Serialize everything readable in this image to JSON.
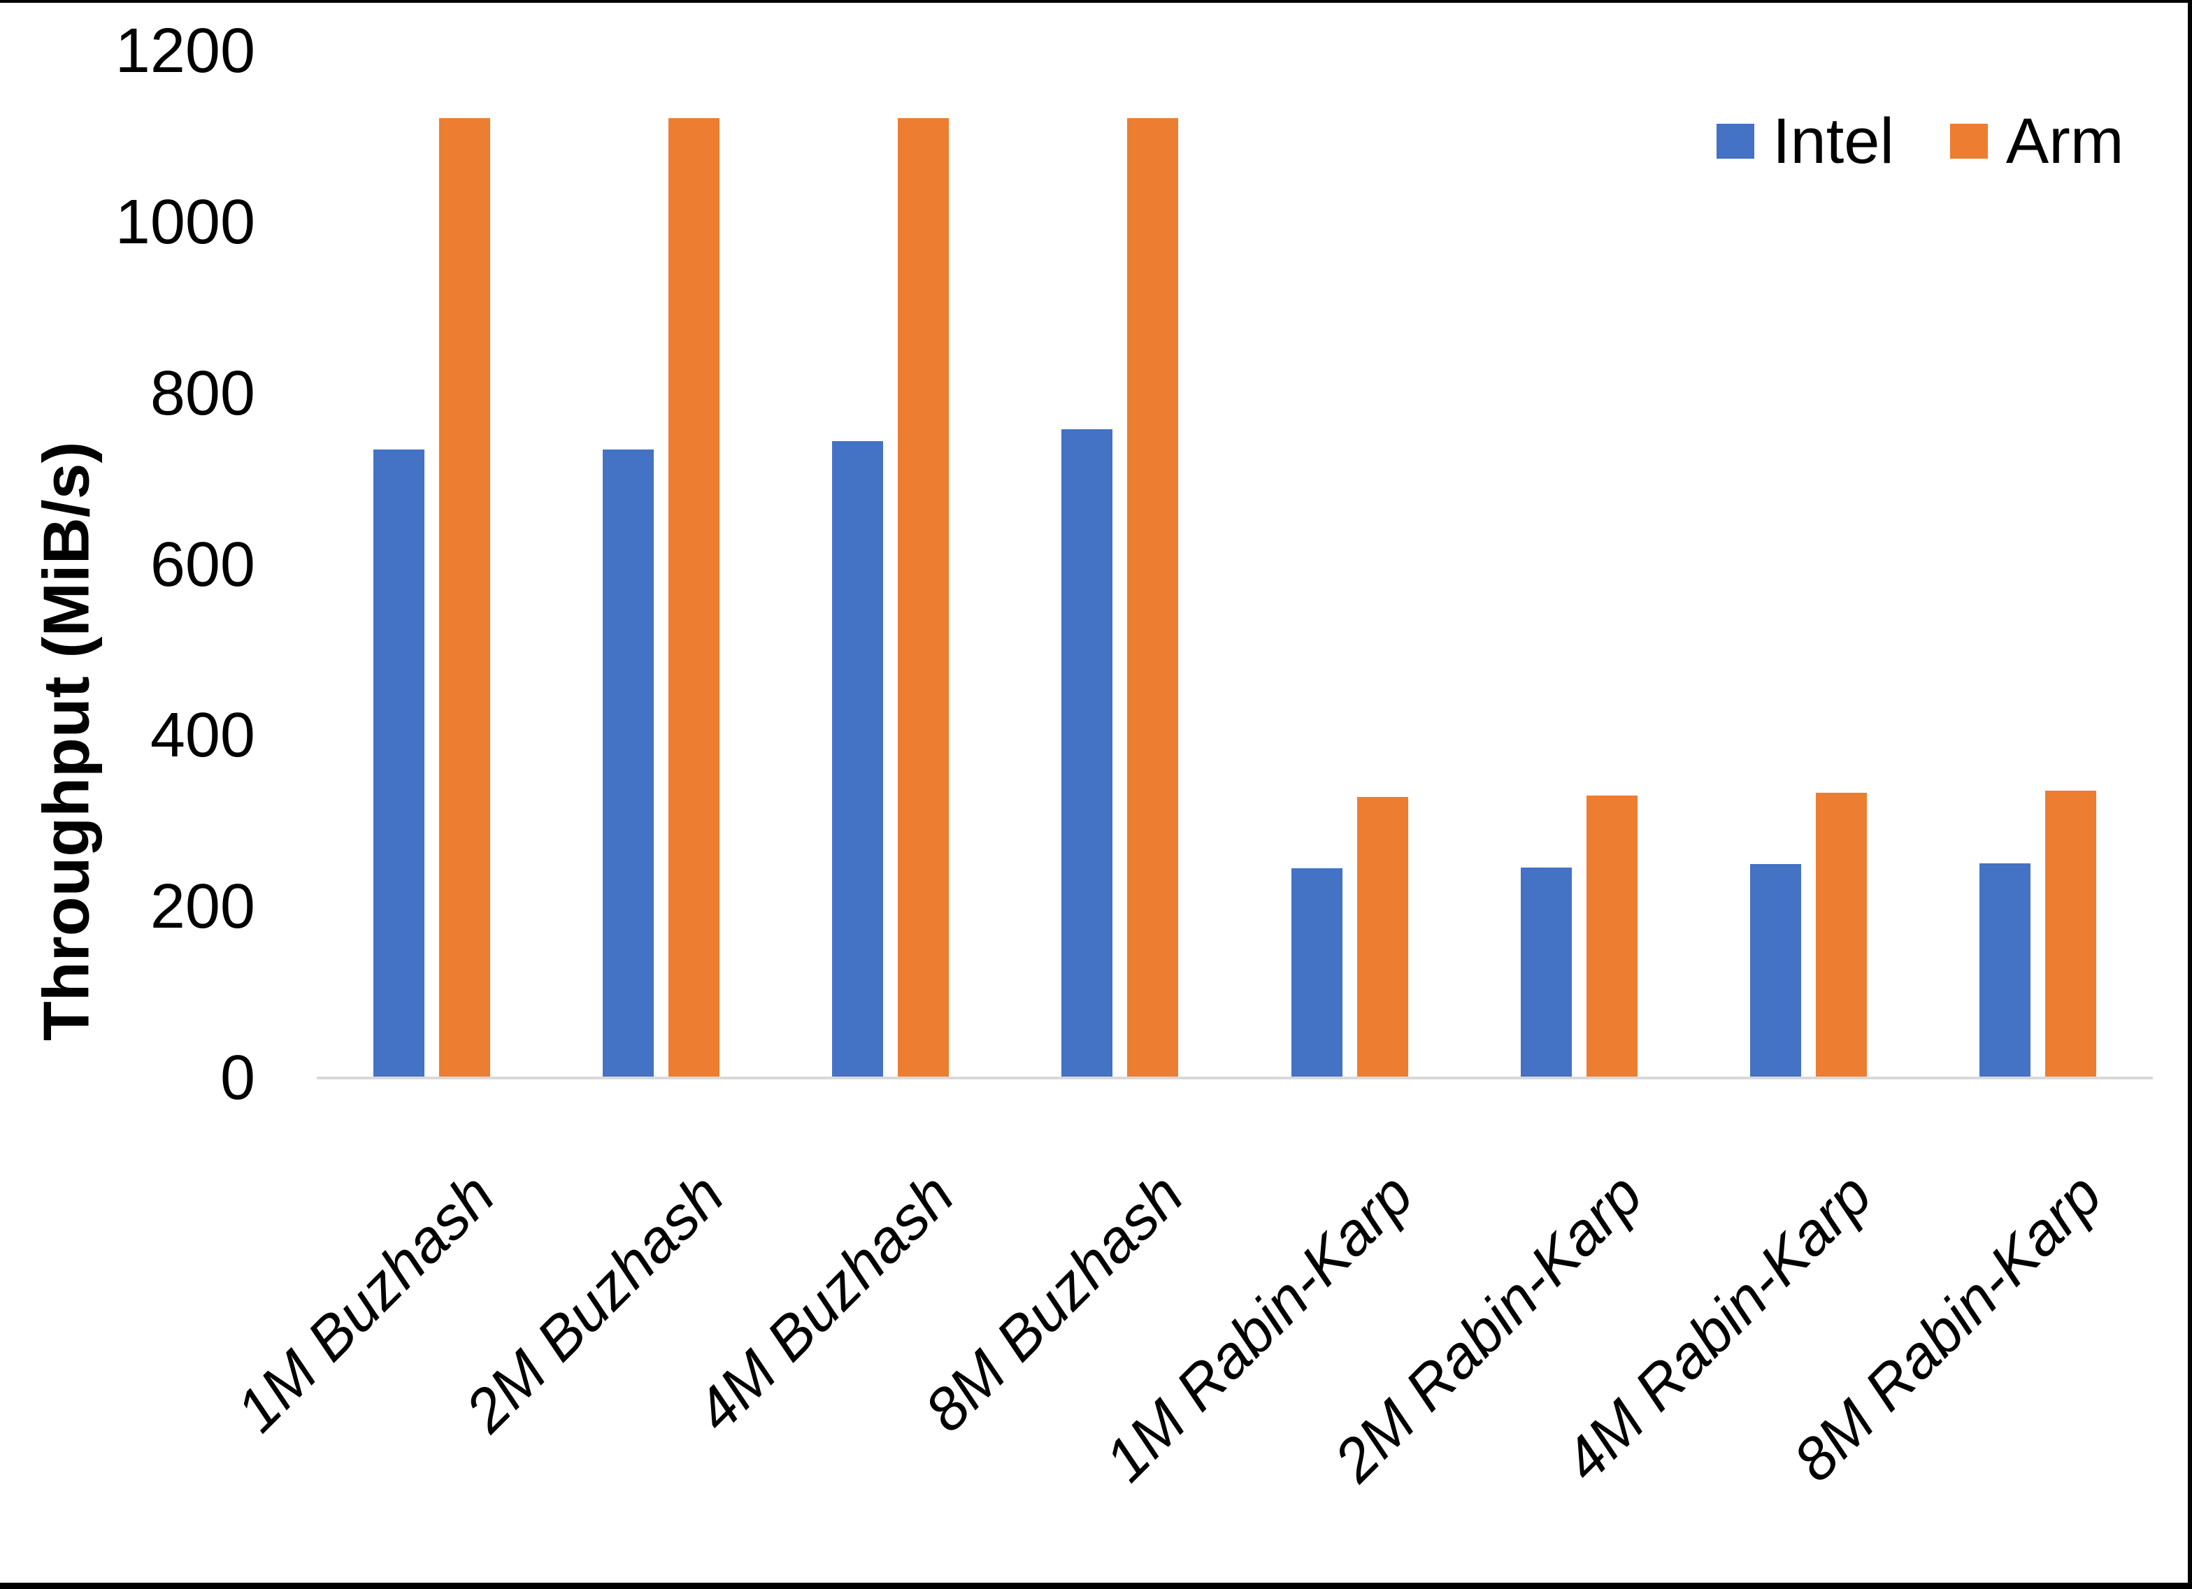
{
  "chart_data": {
    "type": "bar",
    "title": "",
    "ylabel": "Throughput (MiB/s)",
    "xlabel": "",
    "ylim": [
      0,
      1200
    ],
    "yticks": [
      0,
      200,
      400,
      600,
      800,
      1000,
      1200
    ],
    "grid": false,
    "legend_position": "top-right",
    "categories": [
      "1M Buzhash",
      "2M Buzhash",
      "4M Buzhash",
      "8M Buzhash",
      "1M Rabin-Karp",
      "2M Rabin-Karp",
      "4M Rabin-Karp",
      "8M Rabin-Karp"
    ],
    "series": [
      {
        "name": "Intel",
        "color": "#4472C4",
        "values": [
          734,
          734,
          744,
          758,
          245,
          246,
          250,
          251
        ]
      },
      {
        "name": "Arm",
        "color": "#ED7D31",
        "values": [
          1122,
          1122,
          1122,
          1122,
          328,
          330,
          333,
          336
        ]
      }
    ]
  },
  "colors": {
    "background": "#FFFFFF",
    "axis_line": "#D9D9D9",
    "text": "#000000",
    "frame_border": "#000000"
  }
}
